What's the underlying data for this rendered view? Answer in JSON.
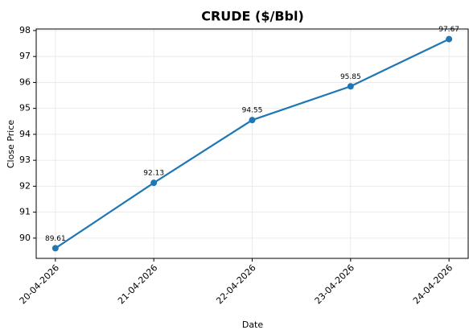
{
  "chart_data": {
    "type": "line",
    "title": "CRUDE ($/Bbl)",
    "x_label": "Date",
    "y_label": "Close Price",
    "categories": [
      "20-04-2026",
      "21-04-2026",
      "22-04-2026",
      "23-04-2026",
      "24-04-2026"
    ],
    "series": [
      {
        "name": "Close Price",
        "color": "#1f77b4",
        "values": [
          89.61,
          92.13,
          94.55,
          95.85,
          97.67
        ]
      }
    ],
    "ylim": [
      89.22,
      98.06
    ],
    "yticks": [
      90,
      91,
      92,
      93,
      94,
      95,
      96,
      97,
      98
    ],
    "grid": true
  }
}
